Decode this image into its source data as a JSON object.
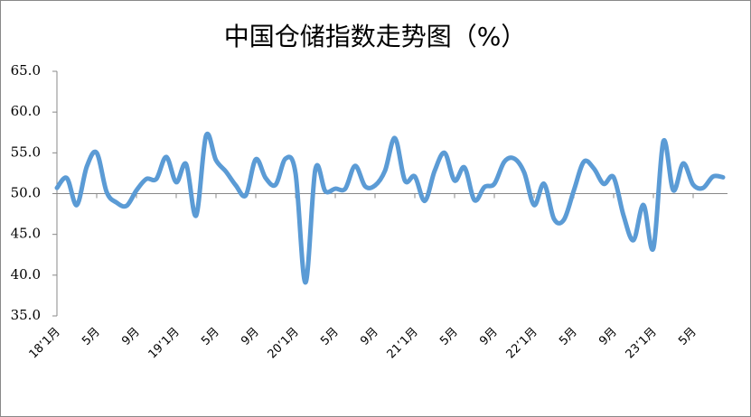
{
  "chart_data": {
    "type": "line",
    "title": "中国仓储指数走势图（%）",
    "categories": [
      "18’1月",
      null,
      null,
      null,
      "5月",
      null,
      null,
      null,
      "9月",
      null,
      null,
      null,
      "19’1月",
      null,
      null,
      null,
      "5月",
      null,
      null,
      null,
      "9月",
      null,
      null,
      null,
      "20’1月",
      null,
      null,
      null,
      "5月",
      null,
      null,
      null,
      "9月",
      null,
      null,
      null,
      "21’1月",
      null,
      null,
      null,
      "5月",
      null,
      null,
      null,
      "9月",
      null,
      null,
      null,
      "22’1月",
      null,
      null,
      null,
      "5月",
      null,
      null,
      null,
      "9月",
      null,
      null,
      null,
      "23’1月",
      null,
      null,
      null,
      "5月",
      null,
      null,
      null
    ],
    "values": [
      50.7,
      51.9,
      48.6,
      53.3,
      55.0,
      50.2,
      48.9,
      48.5,
      50.4,
      51.8,
      51.8,
      54.5,
      51.4,
      53.6,
      47.3,
      57.1,
      54.1,
      52.7,
      51.0,
      49.8,
      54.2,
      51.9,
      51.1,
      54.3,
      52.5,
      39.1,
      53.0,
      50.3,
      50.6,
      50.6,
      53.4,
      50.9,
      51.0,
      52.8,
      56.8,
      51.6,
      52.1,
      49.1,
      52.8,
      55.0,
      51.6,
      53.2,
      49.2,
      50.8,
      51.2,
      53.9,
      54.3,
      52.6,
      48.6,
      51.2,
      46.9,
      46.8,
      50.4,
      53.9,
      53.1,
      51.2,
      52.0,
      47.3,
      44.3,
      48.6,
      43.3,
      56.4,
      50.4,
      53.7,
      51.1,
      50.7,
      52.1,
      52.0
    ],
    "color": "#5b9bd5",
    "ylim": [
      35,
      65
    ],
    "yticks": [
      {
        "value": 35,
        "label": "35.0"
      },
      {
        "value": 40,
        "label": "40.0"
      },
      {
        "value": 45,
        "label": "45.0"
      },
      {
        "value": 50,
        "label": "50.0"
      },
      {
        "value": 55,
        "label": "55.0"
      },
      {
        "value": 60,
        "label": "60.0"
      },
      {
        "value": 65,
        "label": "65.0"
      }
    ]
  }
}
